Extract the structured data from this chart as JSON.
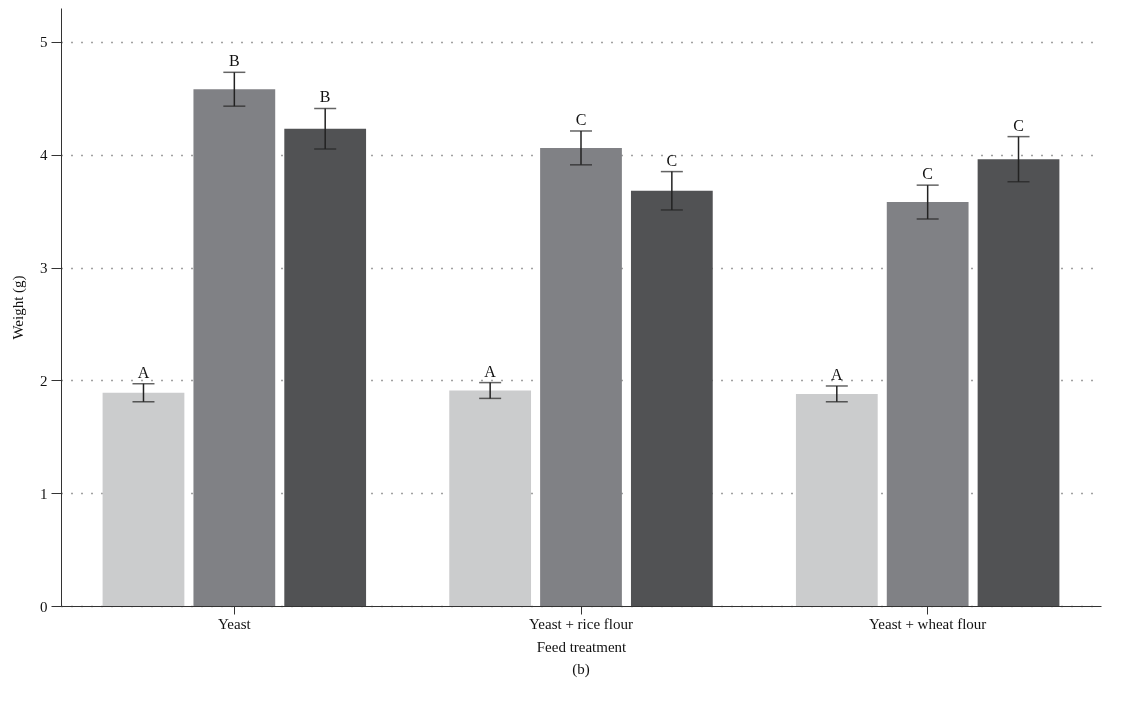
{
  "chart_data": {
    "type": "bar",
    "xlabel": "Feed treatment",
    "ylabel": "Weight (g)",
    "annotations": [
      "(b)"
    ],
    "categories": [
      "Yeast",
      "Yeast + rice flour",
      "Yeast + wheat flour"
    ],
    "series": [
      {
        "color": "#cbcccd",
        "values": [
          1.89,
          1.91,
          1.88
        ],
        "errors": [
          0.08,
          0.07,
          0.07
        ],
        "value_labels": [
          "A",
          "A",
          "A"
        ]
      },
      {
        "color": "#808185",
        "values": [
          4.58,
          4.06,
          3.58
        ],
        "errors": [
          0.15,
          0.15,
          0.15
        ],
        "value_labels": [
          "B",
          "C",
          "C"
        ]
      },
      {
        "color": "#515254",
        "values": [
          4.23,
          3.68,
          3.96
        ],
        "errors": [
          0.18,
          0.17,
          0.2
        ],
        "value_labels": [
          "B",
          "C",
          "C"
        ]
      }
    ],
    "ylim": [
      0,
      5.3
    ],
    "yticks": [
      0,
      1,
      2,
      3,
      4,
      5
    ],
    "grid": "y",
    "legend": false
  }
}
